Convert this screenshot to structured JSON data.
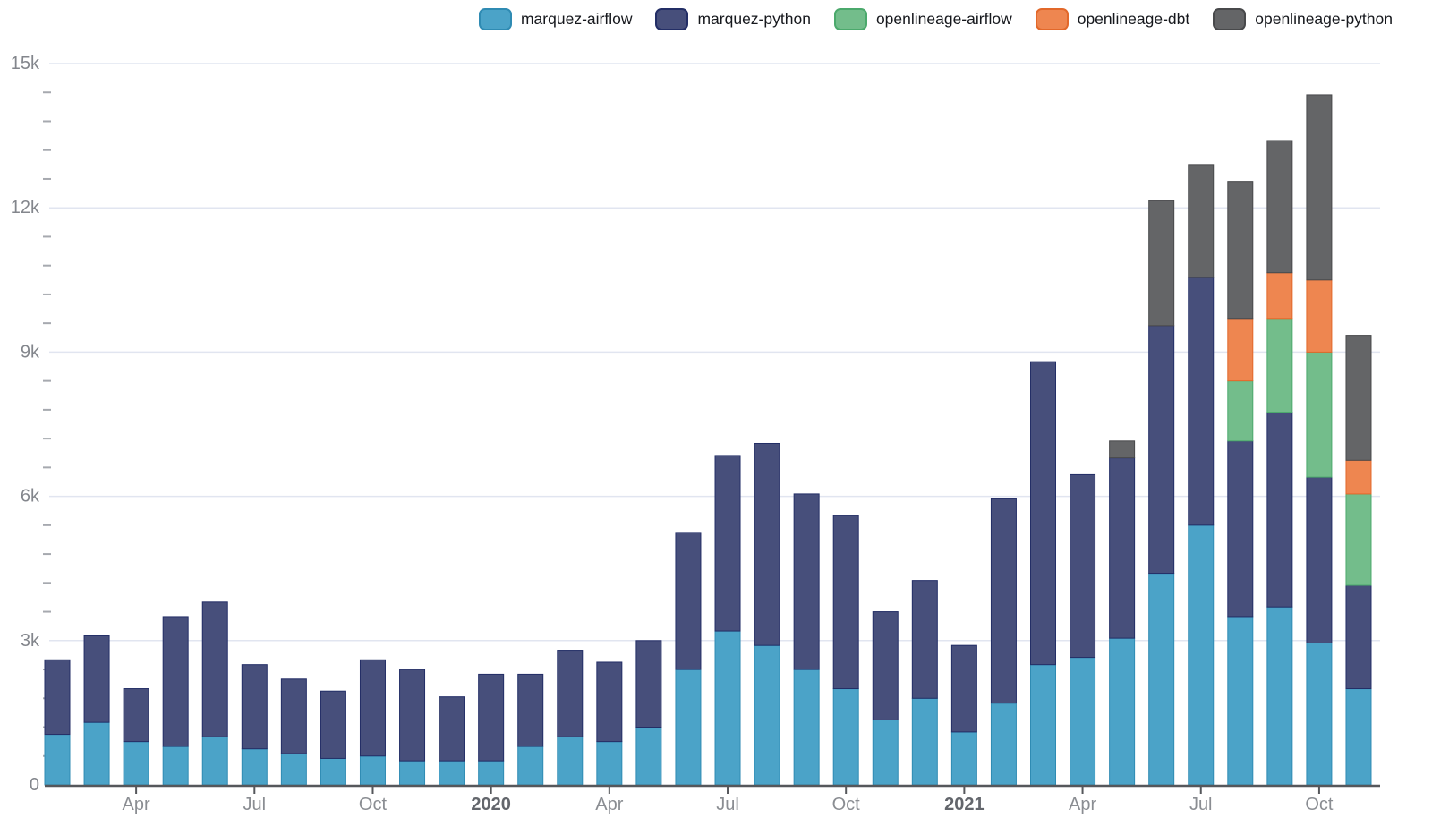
{
  "chart_data": {
    "type": "bar",
    "stacked": true,
    "title": "",
    "xlabel": "",
    "ylabel": "",
    "ylim": [
      0,
      15000
    ],
    "grid": "horizontal-major",
    "legend_position": "top-right",
    "y_major_ticks": [
      {
        "value": 0,
        "label": "0"
      },
      {
        "value": 3000,
        "label": "3k"
      },
      {
        "value": 6000,
        "label": "6k"
      },
      {
        "value": 9000,
        "label": "9k"
      },
      {
        "value": 12000,
        "label": "12k"
      },
      {
        "value": 15000,
        "label": "15k"
      }
    ],
    "y_minor_step": 600,
    "categories": [
      "Feb 2019",
      "Mar 2019",
      "Apr 2019",
      "May 2019",
      "Jun 2019",
      "Jul 2019",
      "Aug 2019",
      "Sep 2019",
      "Oct 2019",
      "Nov 2019",
      "Dec 2019",
      "Jan 2020",
      "Feb 2020",
      "Mar 2020",
      "Apr 2020",
      "May 2020",
      "Jun 2020",
      "Jul 2020",
      "Aug 2020",
      "Sep 2020",
      "Oct 2020",
      "Nov 2020",
      "Dec 2020",
      "Jan 2021",
      "Feb 2021",
      "Mar 2021",
      "Apr 2021",
      "May 2021",
      "Jun 2021",
      "Jul 2021",
      "Aug 2021",
      "Sep 2021",
      "Oct 2021",
      "Nov 2021"
    ],
    "x_ticks": [
      {
        "index": 2,
        "label": "Apr",
        "bold": false
      },
      {
        "index": 5,
        "label": "Jul",
        "bold": false
      },
      {
        "index": 8,
        "label": "Oct",
        "bold": false
      },
      {
        "index": 11,
        "label": "2020",
        "bold": true
      },
      {
        "index": 14,
        "label": "Apr",
        "bold": false
      },
      {
        "index": 17,
        "label": "Jul",
        "bold": false
      },
      {
        "index": 20,
        "label": "Oct",
        "bold": false
      },
      {
        "index": 23,
        "label": "2021",
        "bold": true
      },
      {
        "index": 26,
        "label": "Apr",
        "bold": false
      },
      {
        "index": 29,
        "label": "Jul",
        "bold": false
      },
      {
        "index": 32,
        "label": "Oct",
        "bold": false
      }
    ],
    "series": [
      {
        "name": "marquez-airflow",
        "color": "#4BA3C8",
        "border_color": "#2F8BB3",
        "values": [
          1050,
          1300,
          900,
          800,
          1000,
          750,
          650,
          550,
          600,
          500,
          500,
          500,
          800,
          1000,
          900,
          1200,
          2400,
          3200,
          2900,
          2400,
          2000,
          1350,
          1800,
          1100,
          1700,
          2500,
          2650,
          3050,
          4400,
          5400,
          3500,
          3700,
          2950,
          2000
        ]
      },
      {
        "name": "marquez-python",
        "color": "#474F7B",
        "border_color": "#232E66",
        "values": [
          1550,
          1800,
          1100,
          2700,
          2800,
          1750,
          1550,
          1400,
          2000,
          1900,
          1330,
          1800,
          1500,
          1800,
          1650,
          1800,
          2850,
          3650,
          4200,
          3650,
          3600,
          2250,
          2450,
          1800,
          4250,
          6300,
          3800,
          3750,
          5150,
          5150,
          3650,
          4050,
          3450,
          2150
        ]
      },
      {
        "name": "openlineage-airflow",
        "color": "#73BD8B",
        "border_color": "#4BA96C",
        "values": [
          0,
          0,
          0,
          0,
          0,
          0,
          0,
          0,
          0,
          0,
          0,
          0,
          0,
          0,
          0,
          0,
          0,
          0,
          0,
          0,
          0,
          0,
          0,
          0,
          0,
          0,
          0,
          0,
          0,
          0,
          1250,
          1950,
          2600,
          1900
        ]
      },
      {
        "name": "openlineage-dbt",
        "color": "#EE8650",
        "border_color": "#E2682A",
        "values": [
          0,
          0,
          0,
          0,
          0,
          0,
          0,
          0,
          0,
          0,
          0,
          0,
          0,
          0,
          0,
          0,
          0,
          0,
          0,
          0,
          0,
          0,
          0,
          0,
          0,
          0,
          0,
          0,
          0,
          0,
          1300,
          950,
          1500,
          700
        ]
      },
      {
        "name": "openlineage-python",
        "color": "#646567",
        "border_color": "#48494B",
        "values": [
          0,
          0,
          0,
          0,
          0,
          0,
          0,
          0,
          0,
          0,
          0,
          0,
          0,
          0,
          0,
          0,
          0,
          0,
          0,
          0,
          0,
          0,
          0,
          0,
          0,
          0,
          0,
          350,
          2600,
          2350,
          2850,
          2750,
          3850,
          2600
        ]
      }
    ]
  }
}
